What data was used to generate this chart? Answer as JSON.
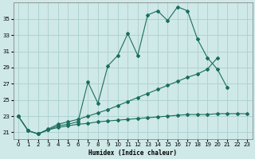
{
  "xlabel": "Humidex (Indice chaleur)",
  "background_color": "#cfe8e8",
  "grid_color": "#aacfcf",
  "line_color": "#1a6e5e",
  "line1_x": [
    0,
    1,
    2,
    3,
    4,
    5,
    6,
    7,
    8,
    9,
    10,
    11,
    12,
    13,
    14,
    15,
    16,
    17,
    18,
    19,
    20,
    21
  ],
  "line1_y": [
    23.0,
    21.2,
    20.8,
    21.3,
    21.8,
    22.0,
    22.3,
    27.2,
    24.6,
    29.2,
    30.5,
    33.2,
    30.5,
    35.5,
    36.0,
    34.8,
    36.5,
    36.0,
    32.5,
    30.2,
    28.8,
    26.5
  ],
  "line2_x": [
    0,
    1,
    2,
    3,
    4,
    5,
    6,
    7,
    8,
    9,
    10,
    11,
    12,
    13,
    14,
    15,
    16,
    17,
    18,
    19,
    20
  ],
  "line2_y": [
    23.0,
    21.2,
    20.8,
    21.4,
    22.0,
    22.3,
    22.6,
    23.0,
    23.4,
    23.8,
    24.3,
    24.8,
    25.3,
    25.8,
    26.3,
    26.8,
    27.3,
    27.8,
    28.2,
    28.8,
    30.2
  ],
  "line3_x": [
    0,
    1,
    2,
    3,
    4,
    5,
    6,
    7,
    8,
    9,
    10,
    11,
    12,
    13,
    14,
    15,
    16,
    17,
    18,
    19,
    20,
    21,
    22,
    23
  ],
  "line3_y": [
    23.0,
    21.2,
    20.8,
    21.3,
    21.6,
    21.8,
    22.0,
    22.1,
    22.3,
    22.4,
    22.5,
    22.6,
    22.7,
    22.8,
    22.9,
    23.0,
    23.1,
    23.2,
    23.2,
    23.2,
    23.3,
    23.3,
    23.3,
    23.3
  ],
  "ylim": [
    20.2,
    37.0
  ],
  "yticks": [
    21,
    23,
    25,
    27,
    29,
    31,
    33,
    35
  ],
  "xlim": [
    -0.5,
    23.5
  ],
  "xticks": [
    0,
    1,
    2,
    3,
    4,
    5,
    6,
    7,
    8,
    9,
    10,
    11,
    12,
    13,
    14,
    15,
    16,
    17,
    18,
    19,
    20,
    21,
    22,
    23
  ]
}
